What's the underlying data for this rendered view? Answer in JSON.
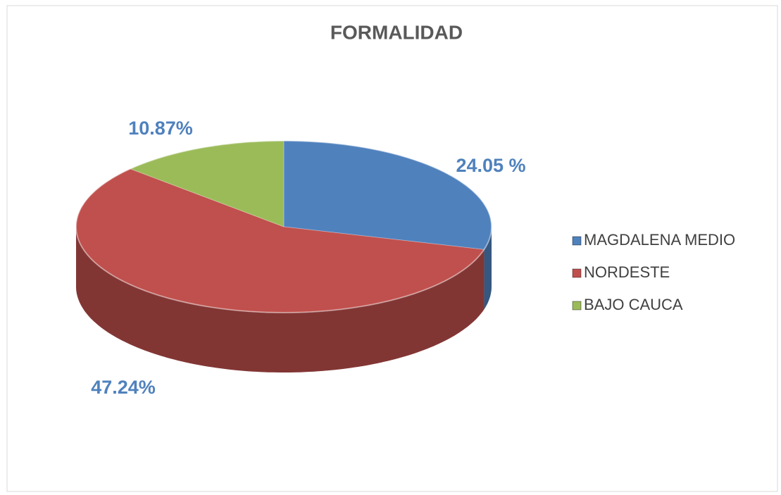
{
  "chart_data": {
    "type": "pie",
    "title": "FORMALIDAD",
    "categories": [
      "MAGDALENA MEDIO",
      "NORDESTE",
      "BAJO CAUCA"
    ],
    "values": [
      24.05,
      47.24,
      10.87
    ],
    "value_labels": [
      "24.05 %",
      "47.24%",
      "10.87%"
    ],
    "colors": [
      "#4f81bd",
      "#c0504d",
      "#9bbb59"
    ],
    "legend": "right"
  }
}
